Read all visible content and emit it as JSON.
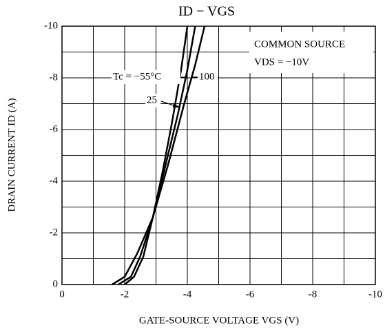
{
  "chart_data": {
    "type": "line",
    "title": "ID − VGS",
    "x_label": "GATE-SOURCE VOLTAGE  VGS  (V)",
    "y_label": "DRAIN CURRENT  ID  (A)",
    "legend_lines": [
      "COMMON SOURCE",
      "VDS = −10V"
    ],
    "annotations": [
      "Tc = −55°C",
      "100",
      "25"
    ],
    "xlim": [
      0,
      -10
    ],
    "ylim": [
      0,
      -10
    ],
    "xticks": [
      0,
      -2,
      -4,
      -6,
      -8,
      -10
    ],
    "yticks": [
      0,
      -2,
      -4,
      -6,
      -8,
      -10
    ],
    "xminor_ticks": [
      -1,
      -3,
      -5,
      -7,
      -9
    ],
    "yminor_ticks": [
      -1,
      -3,
      -5,
      -7,
      -9
    ],
    "grid": true,
    "series": [
      {
        "name": "−55°C",
        "color": "#000000",
        "x": [
          -2.0,
          -2.3,
          -2.6,
          -2.9,
          -3.2,
          -3.5,
          -3.8,
          -4.0
        ],
        "values": [
          0,
          -0.3,
          -1.1,
          -2.6,
          -4.3,
          -6.2,
          -8.3,
          -10
        ]
      },
      {
        "name": "25",
        "color": "#000000",
        "x": [
          -1.8,
          -2.2,
          -2.5,
          -2.9,
          -3.3,
          -3.7,
          -4.0,
          -4.25
        ],
        "values": [
          0,
          -0.3,
          -1.1,
          -2.6,
          -4.6,
          -6.6,
          -8.3,
          -10
        ]
      },
      {
        "name": "100",
        "color": "#000000",
        "x": [
          -1.6,
          -2.0,
          -2.4,
          -2.9,
          -3.4,
          -3.9,
          -4.25,
          -4.55
        ],
        "values": [
          0,
          -0.3,
          -1.2,
          -2.6,
          -4.7,
          -7.0,
          -8.5,
          -10
        ]
      }
    ]
  }
}
